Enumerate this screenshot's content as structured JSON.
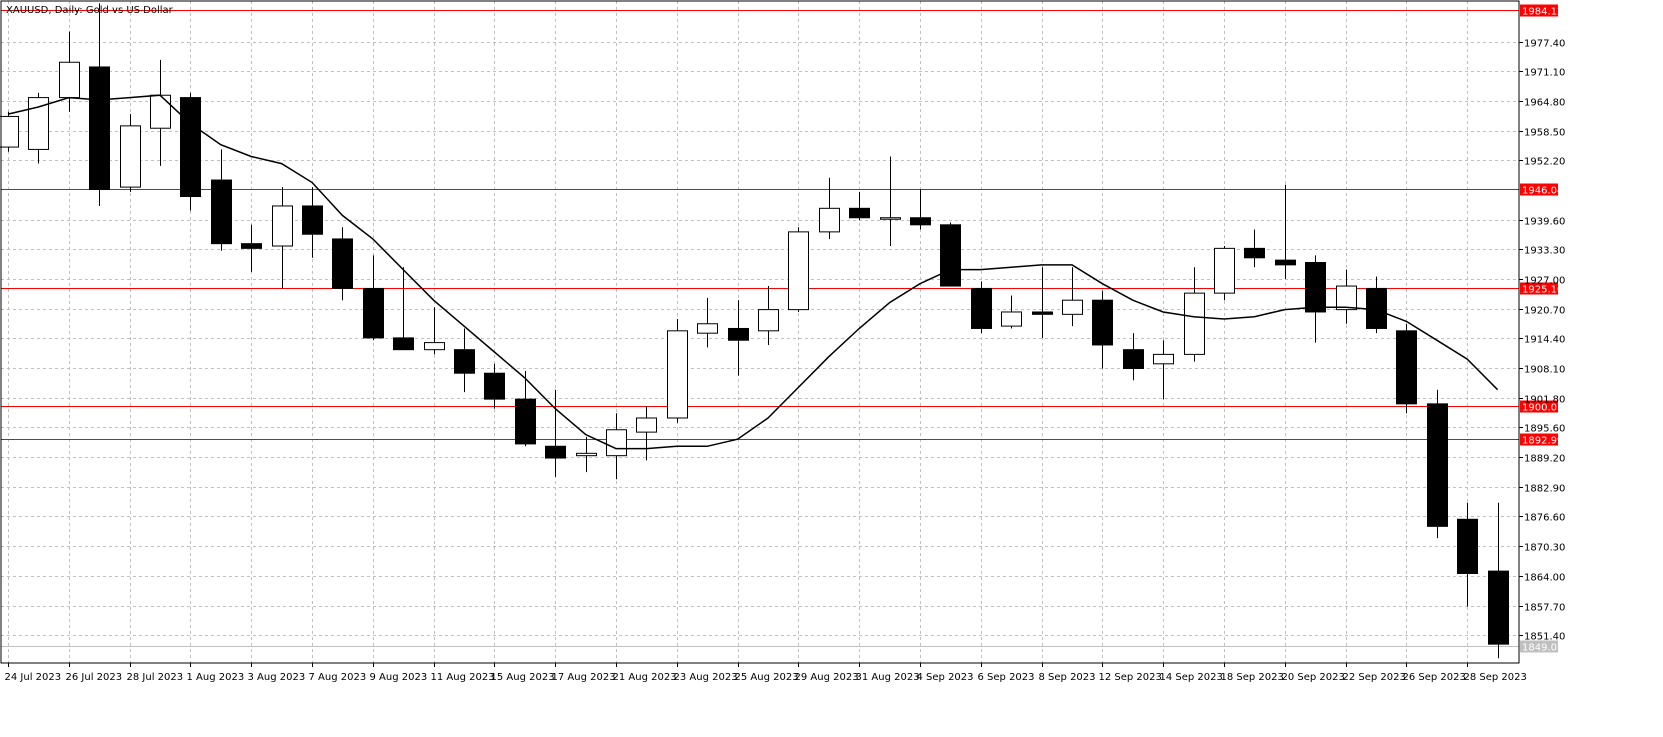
{
  "chart_data": {
    "type": "candlestick",
    "title": "XAUUSD, Daily:  Gold vs US Dollar",
    "ylim": [
      1845.5,
      1986.0
    ],
    "y_ticks": [
      "1977.40",
      "1971.10",
      "1964.80",
      "1958.50",
      "1952.20",
      "1939.60",
      "1933.30",
      "1927.00",
      "1920.70",
      "1914.40",
      "1908.10",
      "1901.80",
      "1895.60",
      "1889.20",
      "1882.90",
      "1876.60",
      "1870.30",
      "1864.00",
      "1857.70",
      "1851.40"
    ],
    "x_tick_labels": [
      {
        "label": "24 Jul 2023",
        "index": 0
      },
      {
        "label": "26 Jul 2023",
        "index": 2
      },
      {
        "label": "28 Jul 2023",
        "index": 4
      },
      {
        "label": "1 Aug 2023",
        "index": 6
      },
      {
        "label": "3 Aug 2023",
        "index": 8
      },
      {
        "label": "7 Aug 2023",
        "index": 10
      },
      {
        "label": "9 Aug 2023",
        "index": 12
      },
      {
        "label": "11 Aug 2023",
        "index": 14
      },
      {
        "label": "15 Aug 2023",
        "index": 16
      },
      {
        "label": "17 Aug 2023",
        "index": 18
      },
      {
        "label": "21 Aug 2023",
        "index": 20
      },
      {
        "label": "23 Aug 2023",
        "index": 22
      },
      {
        "label": "25 Aug 2023",
        "index": 24
      },
      {
        "label": "29 Aug 2023",
        "index": 26
      },
      {
        "label": "31 Aug 2023",
        "index": 28
      },
      {
        "label": "4 Sep 2023",
        "index": 30
      },
      {
        "label": "6 Sep 2023",
        "index": 32
      },
      {
        "label": "8 Sep 2023",
        "index": 34
      },
      {
        "label": "12 Sep 2023",
        "index": 36
      },
      {
        "label": "14 Sep 2023",
        "index": 38
      },
      {
        "label": "18 Sep 2023",
        "index": 40
      },
      {
        "label": "20 Sep 2023",
        "index": 42
      },
      {
        "label": "22 Sep 2023",
        "index": 44
      },
      {
        "label": "26 Sep 2023",
        "index": 46
      },
      {
        "label": "28 Sep 2023",
        "index": 48
      }
    ],
    "candles": [
      {
        "o": 1955.0,
        "h": 1962.5,
        "l": 1954.0,
        "c": 1961.5
      },
      {
        "o": 1954.5,
        "h": 1966.5,
        "l": 1951.5,
        "c": 1965.5
      },
      {
        "o": 1965.5,
        "h": 1979.5,
        "l": 1962.5,
        "c": 1973.0
      },
      {
        "o": 1972.0,
        "h": 1985.5,
        "l": 1942.5,
        "c": 1946.0
      },
      {
        "o": 1946.5,
        "h": 1962.0,
        "l": 1945.5,
        "c": 1959.5
      },
      {
        "o": 1959.0,
        "h": 1973.5,
        "l": 1951.0,
        "c": 1966.0
      },
      {
        "o": 1965.5,
        "h": 1966.5,
        "l": 1941.5,
        "c": 1944.5
      },
      {
        "o": 1948.0,
        "h": 1954.5,
        "l": 1933.0,
        "c": 1934.5
      },
      {
        "o": 1934.5,
        "h": 1938.5,
        "l": 1928.5,
        "c": 1933.5
      },
      {
        "o": 1934.0,
        "h": 1946.5,
        "l": 1925.0,
        "c": 1942.5
      },
      {
        "o": 1942.5,
        "h": 1946.5,
        "l": 1931.5,
        "c": 1936.5
      },
      {
        "o": 1935.5,
        "h": 1938.0,
        "l": 1922.5,
        "c": 1925.0
      },
      {
        "o": 1925.0,
        "h": 1932.0,
        "l": 1914.0,
        "c": 1914.5
      },
      {
        "o": 1914.5,
        "h": 1929.5,
        "l": 1912.0,
        "c": 1912.0
      },
      {
        "o": 1912.0,
        "h": 1921.0,
        "l": 1911.0,
        "c": 1913.5
      },
      {
        "o": 1912.0,
        "h": 1916.5,
        "l": 1903.0,
        "c": 1907.0
      },
      {
        "o": 1907.0,
        "h": 1909.0,
        "l": 1899.5,
        "c": 1901.5
      },
      {
        "o": 1901.5,
        "h": 1907.5,
        "l": 1891.5,
        "c": 1892.0
      },
      {
        "o": 1891.5,
        "h": 1903.5,
        "l": 1885.0,
        "c": 1889.0
      },
      {
        "o": 1889.5,
        "h": 1893.5,
        "l": 1886.0,
        "c": 1890.0
      },
      {
        "o": 1889.5,
        "h": 1898.5,
        "l": 1884.5,
        "c": 1895.0
      },
      {
        "o": 1894.5,
        "h": 1900.0,
        "l": 1888.5,
        "c": 1897.5
      },
      {
        "o": 1897.5,
        "h": 1918.5,
        "l": 1896.5,
        "c": 1916.0
      },
      {
        "o": 1915.5,
        "h": 1923.0,
        "l": 1912.5,
        "c": 1917.5
      },
      {
        "o": 1916.5,
        "h": 1922.5,
        "l": 1906.5,
        "c": 1914.0
      },
      {
        "o": 1916.0,
        "h": 1925.5,
        "l": 1913.0,
        "c": 1920.5
      },
      {
        "o": 1920.5,
        "h": 1938.0,
        "l": 1920.0,
        "c": 1937.0
      },
      {
        "o": 1937.0,
        "h": 1948.5,
        "l": 1935.5,
        "c": 1942.0
      },
      {
        "o": 1942.0,
        "h": 1945.5,
        "l": 1939.5,
        "c": 1940.0
      },
      {
        "o": 1940.0,
        "h": 1953.0,
        "l": 1934.0,
        "c": 1940.0
      },
      {
        "o": 1940.0,
        "h": 1946.0,
        "l": 1937.5,
        "c": 1938.5
      },
      {
        "o": 1938.5,
        "h": 1939.0,
        "l": 1925.5,
        "c": 1925.5
      },
      {
        "o": 1925.0,
        "h": 1926.5,
        "l": 1915.5,
        "c": 1916.5
      },
      {
        "o": 1917.0,
        "h": 1923.5,
        "l": 1916.5,
        "c": 1920.0
      },
      {
        "o": 1920.0,
        "h": 1929.5,
        "l": 1914.5,
        "c": 1919.5
      },
      {
        "o": 1919.5,
        "h": 1929.5,
        "l": 1917.0,
        "c": 1922.5
      },
      {
        "o": 1922.5,
        "h": 1924.5,
        "l": 1908.0,
        "c": 1913.0
      },
      {
        "o": 1912.0,
        "h": 1915.5,
        "l": 1905.5,
        "c": 1908.0
      },
      {
        "o": 1909.0,
        "h": 1914.0,
        "l": 1901.5,
        "c": 1911.0
      },
      {
        "o": 1911.0,
        "h": 1929.5,
        "l": 1909.5,
        "c": 1924.0
      },
      {
        "o": 1924.0,
        "h": 1934.0,
        "l": 1922.5,
        "c": 1933.5
      },
      {
        "o": 1933.5,
        "h": 1937.5,
        "l": 1929.5,
        "c": 1931.5
      },
      {
        "o": 1931.0,
        "h": 1947.0,
        "l": 1927.0,
        "c": 1930.0
      },
      {
        "o": 1930.5,
        "h": 1932.0,
        "l": 1913.5,
        "c": 1920.0
      },
      {
        "o": 1920.5,
        "h": 1929.0,
        "l": 1917.5,
        "c": 1925.5
      },
      {
        "o": 1925.0,
        "h": 1927.5,
        "l": 1915.5,
        "c": 1916.5
      },
      {
        "o": 1916.0,
        "h": 1917.5,
        "l": 1898.5,
        "c": 1900.5
      },
      {
        "o": 1900.5,
        "h": 1903.5,
        "l": 1872.0,
        "c": 1874.5
      },
      {
        "o": 1876.0,
        "h": 1879.5,
        "l": 1857.5,
        "c": 1864.5
      },
      {
        "o": 1865.0,
        "h": 1879.5,
        "l": 1846.5,
        "c": 1849.5
      }
    ],
    "moving_average": [
      1962.0,
      1963.5,
      1965.5,
      1965.0,
      1965.5,
      1966.0,
      1960.0,
      1955.5,
      1953.0,
      1951.5,
      1947.5,
      1940.5,
      1935.5,
      1929.0,
      1922.5,
      1917.0,
      1911.5,
      1906.0,
      1899.5,
      1894.0,
      1891.0,
      1891.0,
      1891.5,
      1891.5,
      1893.0,
      1897.5,
      1904.0,
      1910.5,
      1916.5,
      1922.0,
      1926.0,
      1929.0,
      1929.0,
      1929.5,
      1930.0,
      1930.0,
      1926.0,
      1922.5,
      1920.0,
      1919.0,
      1918.5,
      1919.0,
      1920.5,
      1921.0,
      1921.0,
      1920.5,
      1918.0,
      1914.0,
      1910.0,
      1903.5
    ],
    "horizontal_lines": [
      {
        "value": 1984.12,
        "label": "1984.12",
        "color": "#ff0000"
      },
      {
        "value": 1946.04,
        "label": "1946.04",
        "color": "#ff0000"
      },
      {
        "value": 1925.1,
        "label": "1925.10",
        "color": "#ff0000"
      },
      {
        "value": 1900.07,
        "label": "1900.07",
        "color": "#ff0000"
      },
      {
        "value": 1892.99,
        "label": "1892.99",
        "color": "#ff0000"
      }
    ],
    "current_price": {
      "value": 1849.07,
      "label": "1849.07",
      "color": "#c0c0c0"
    },
    "colors": {
      "bull_body": "#ffffff",
      "bear_body": "#000000",
      "wick": "#000000",
      "grid": "#c0c0c0",
      "ma_line": "#000000"
    },
    "grid": true
  }
}
